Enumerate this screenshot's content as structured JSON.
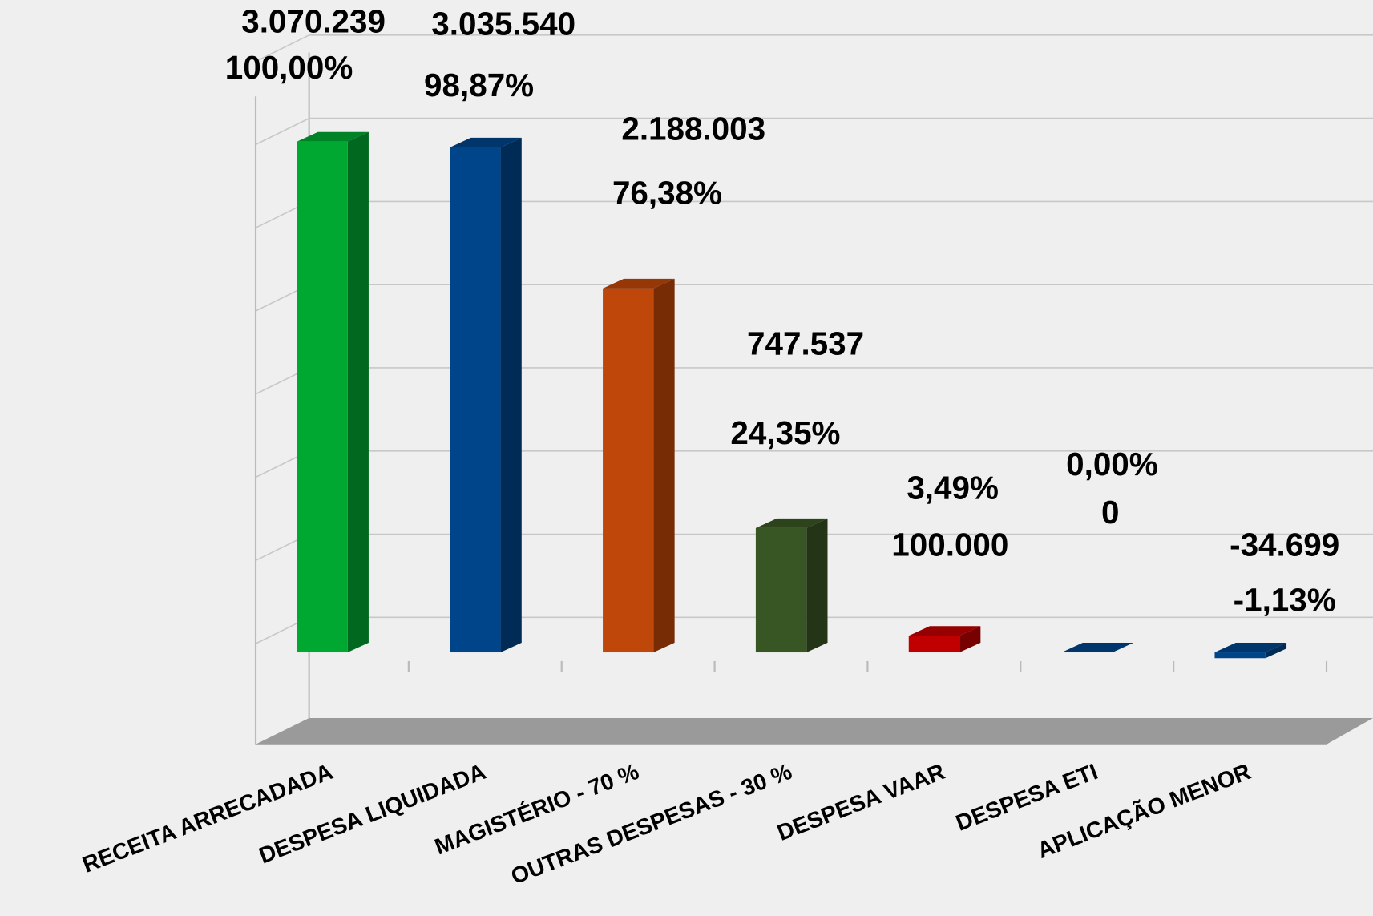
{
  "chart_data": {
    "type": "bar3d",
    "categories": [
      "RECEITA ARRECADADA",
      "DESPESA LIQUIDADA",
      "MAGISTÉRIO - 70 %",
      "OUTRAS DESPESAS - 30 %",
      "DESPESA VAAR",
      "DESPESA ETI",
      "APLICAÇÃO MENOR"
    ],
    "values": [
      3070239,
      3035540,
      2188003,
      747537,
      100000,
      0,
      -34699
    ],
    "value_labels": [
      "3.070.239",
      "3.035.540",
      "2.188.003",
      "747.537",
      "100.000",
      "0",
      "-34.699"
    ],
    "percentages": [
      100,
      98.87,
      76.38,
      24.35,
      3.49,
      0,
      -1.13
    ],
    "percentage_labels": [
      "100,00%",
      "98,87%",
      "76,38%",
      "24,35%",
      "3,49%",
      "0,00%",
      "-1,13%"
    ],
    "colors": [
      "#00a832",
      "#00458a",
      "#c0470a",
      "#385623",
      "#c00000",
      "#00458a",
      "#00458a"
    ],
    "ylim": [
      0,
      3500000
    ],
    "yticks": [
      0,
      500000,
      1000000,
      1500000,
      2000000,
      2500000,
      3000000,
      3500000
    ],
    "grid": true
  }
}
